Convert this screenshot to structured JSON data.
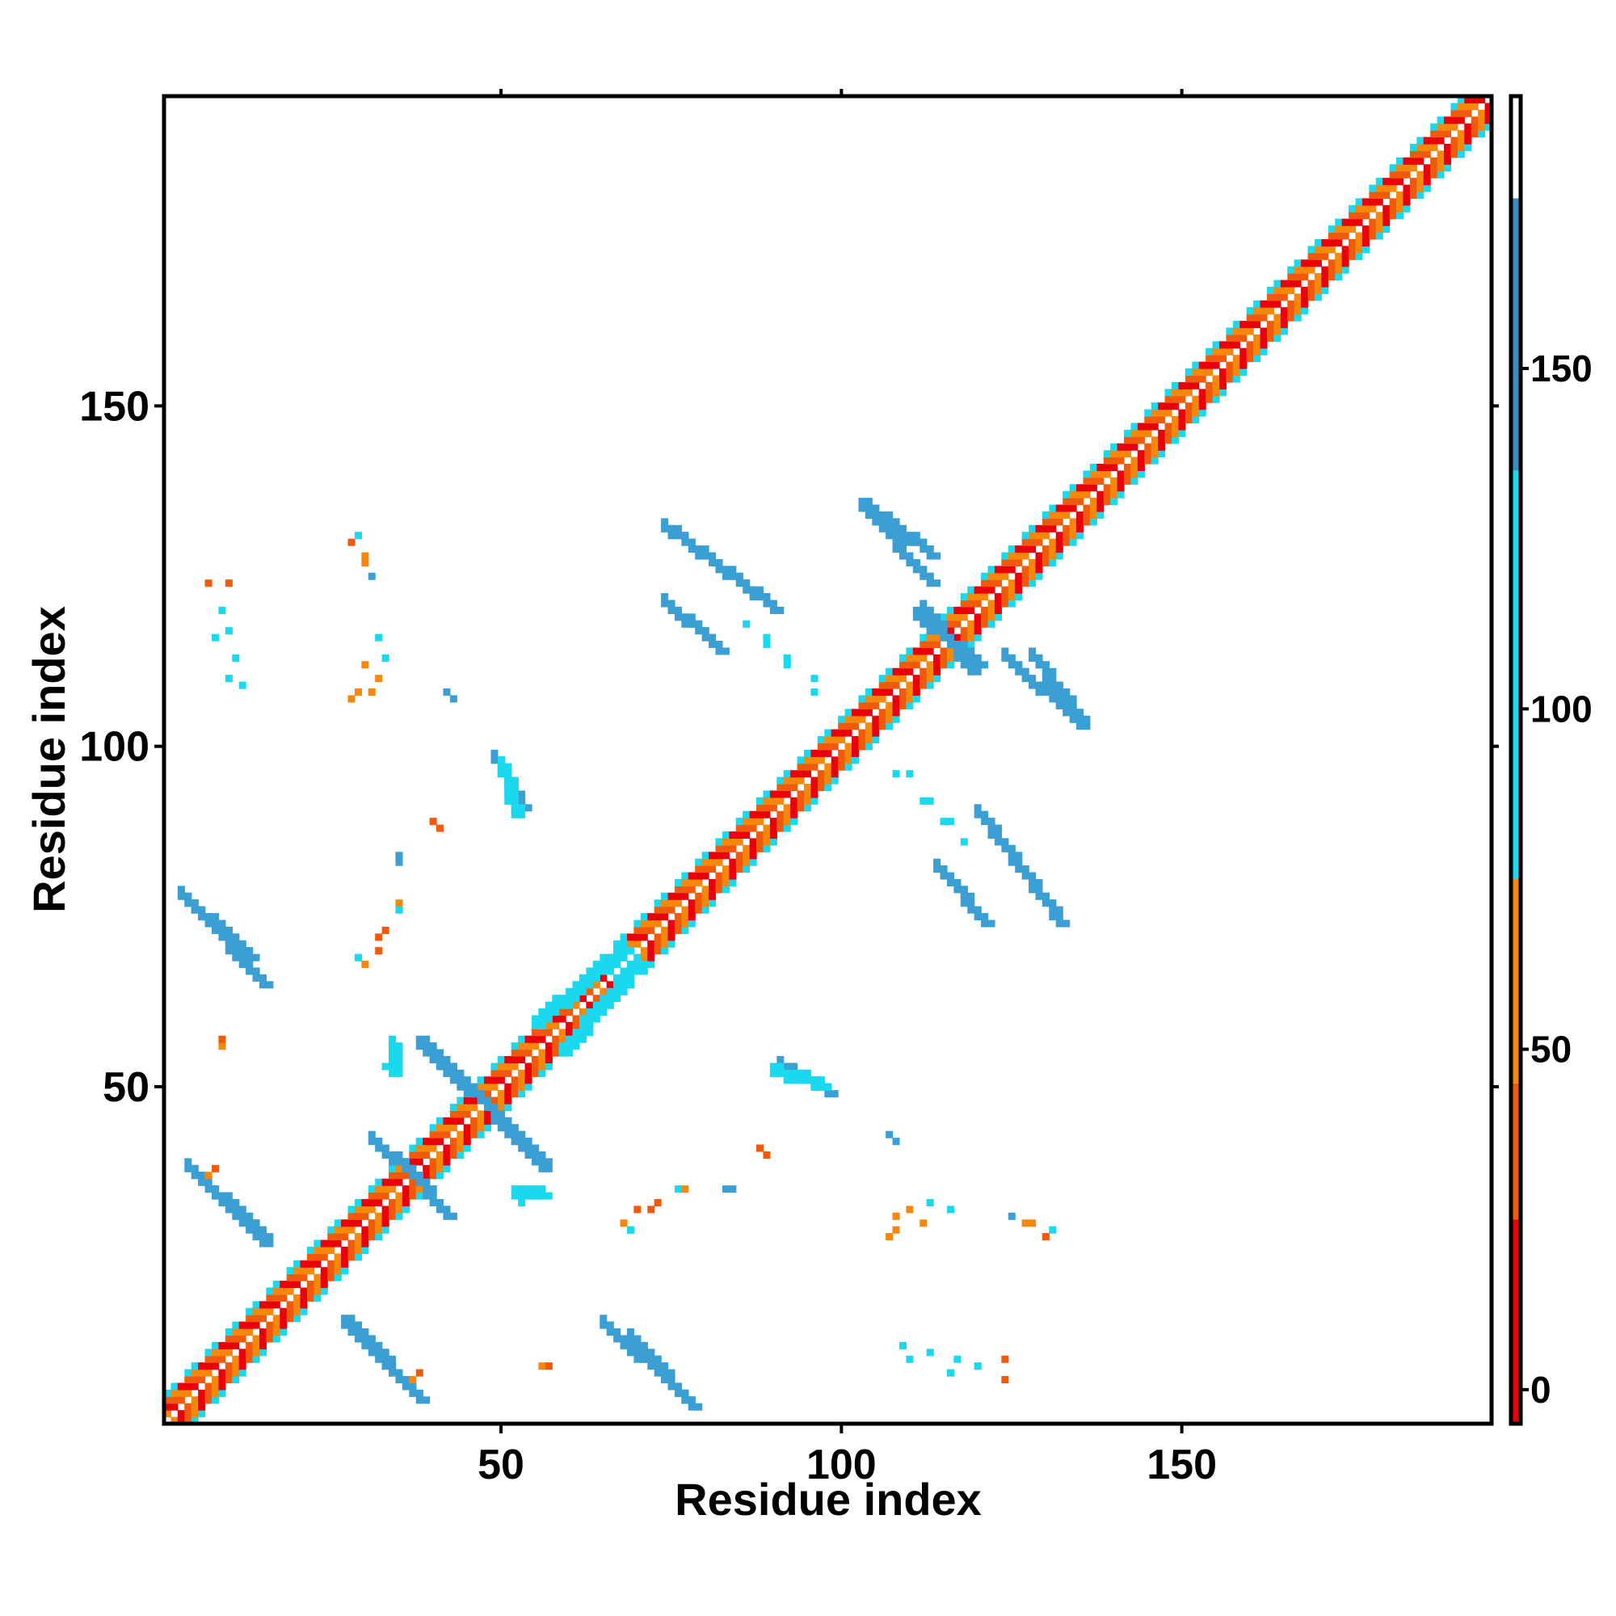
{
  "chart_data": {
    "type": "heatmap",
    "title": "",
    "xlabel": "Residue index",
    "ylabel": "Residue index",
    "xlim": [
      1,
      195
    ],
    "ylim": [
      1,
      195
    ],
    "xticks": [
      50,
      100,
      150
    ],
    "yticks": [
      50,
      100,
      150
    ],
    "grid": false,
    "colorbar": {
      "position": "right",
      "ticks": [
        0,
        50,
        100,
        150
      ],
      "range": [
        -5,
        190
      ],
      "bands": [
        {
          "from": -5,
          "to": 25,
          "color": "#e8000b"
        },
        {
          "from": 25,
          "to": 45,
          "color": "#f15a0a"
        },
        {
          "from": 45,
          "to": 75,
          "color": "#f5880a"
        },
        {
          "from": 75,
          "to": 135,
          "color": "#1ad9ee"
        },
        {
          "from": 135,
          "to": 175,
          "color": "#3b8cc4"
        },
        {
          "from": 175,
          "to": 190,
          "color": "#ffffff"
        }
      ]
    },
    "diagonal": {
      "from": 1,
      "to": 195,
      "near_colors": [
        "#e8000b",
        "#f15a0a",
        "#f5880a"
      ],
      "mid_color": "#1ad9ee"
    },
    "contact_bands": [
      {
        "x": [
          3,
          13
        ],
        "y": [
          78,
          69
        ],
        "color": "#3b9fd4"
      },
      {
        "x": [
          4,
          15
        ],
        "y": [
          38,
          28
        ],
        "color": "#3b9fd4"
      },
      {
        "x": [
          27,
          36
        ],
        "y": [
          15,
          6
        ],
        "color": "#3b9fd4"
      },
      {
        "x": [
          65,
          77
        ],
        "y": [
          15,
          4
        ],
        "color": "#3b9fd4"
      },
      {
        "x": [
          38,
          47
        ],
        "y": [
          56,
          48
        ],
        "color": "#3b9fd4"
      },
      {
        "x": [
          49,
          56
        ],
        "y": [
          45,
          39
        ],
        "color": "#3b9fd4"
      },
      {
        "x": [
          31,
          39
        ],
        "y": [
          42,
          35
        ],
        "color": "#3b9fd4"
      },
      {
        "x": [
          55,
          68
        ],
        "y": [
          59,
          70
        ],
        "color": "#1ad9ee"
      },
      {
        "x": [
          111,
          120
        ],
        "y": [
          119,
          112
        ],
        "color": "#3b9fd4"
      },
      {
        "x": [
          124,
          135
        ],
        "y": [
          113,
          103
        ],
        "color": "#3b9fd4"
      },
      {
        "x": [
          104,
          113
        ],
        "y": [
          135,
          128
        ],
        "color": "#3b9fd4"
      },
      {
        "x": [
          74,
          82
        ],
        "y": [
          121,
          114
        ],
        "color": "#3b9fd4"
      },
      {
        "x": [
          49,
          53
        ],
        "y": [
          98,
          91
        ],
        "color": "#3b9fd4"
      },
      {
        "x": [
          120,
          132
        ],
        "y": [
          90,
          74
        ],
        "color": "#3b9fd4"
      },
      {
        "x": [
          90,
          97
        ],
        "y": [
          52,
          50
        ],
        "color": "#1ad9ee"
      },
      {
        "x": [
          52,
          56
        ],
        "y": [
          34,
          34
        ],
        "color": "#1ad9ee"
      }
    ],
    "contact_patches": [
      {
        "x": 9,
        "y": 56,
        "color": "#f5880a"
      },
      {
        "x": 8,
        "y": 38,
        "color": "#f15a0a"
      },
      {
        "x": 7,
        "y": 124,
        "color": "#f15a0a"
      },
      {
        "x": 8,
        "y": 116,
        "color": "#1ad9ee"
      },
      {
        "x": 10,
        "y": 110,
        "color": "#1ad9ee"
      },
      {
        "x": 28,
        "y": 107,
        "color": "#f5880a"
      },
      {
        "x": 30,
        "y": 112,
        "color": "#f5880a"
      },
      {
        "x": 32,
        "y": 116,
        "color": "#1ad9ee"
      },
      {
        "x": 28,
        "y": 130,
        "color": "#f15a0a"
      },
      {
        "x": 30,
        "y": 127,
        "color": "#f5880a"
      },
      {
        "x": 42,
        "y": 108,
        "color": "#3b9fd4"
      },
      {
        "x": 40,
        "y": 89,
        "color": "#f15a0a"
      },
      {
        "x": 35,
        "y": 84,
        "color": "#3b9fd4"
      },
      {
        "x": 32,
        "y": 72,
        "color": "#f15a0a"
      },
      {
        "x": 29,
        "y": 69,
        "color": "#1ad9ee"
      },
      {
        "x": 35,
        "y": 77,
        "color": "#f5880a"
      },
      {
        "x": 33,
        "y": 53,
        "color": "#1ad9ee"
      },
      {
        "x": 57,
        "y": 9,
        "color": "#f15a0a"
      },
      {
        "x": 37,
        "y": 7,
        "color": "#f5880a"
      },
      {
        "x": 73,
        "y": 33,
        "color": "#f15a0a"
      },
      {
        "x": 70,
        "y": 32,
        "color": "#f15a0a"
      },
      {
        "x": 68,
        "y": 30,
        "color": "#f5880a"
      },
      {
        "x": 76,
        "y": 35,
        "color": "#1ad9ee"
      },
      {
        "x": 69,
        "y": 29,
        "color": "#1ad9ee"
      },
      {
        "x": 83,
        "y": 35,
        "color": "#3b9fd4"
      },
      {
        "x": 88,
        "y": 41,
        "color": "#f15a0a"
      },
      {
        "x": 107,
        "y": 43,
        "color": "#3b9fd4"
      },
      {
        "x": 108,
        "y": 31,
        "color": "#f5880a"
      },
      {
        "x": 110,
        "y": 32,
        "color": "#f5880a"
      },
      {
        "x": 113,
        "y": 33,
        "color": "#1ad9ee"
      },
      {
        "x": 108,
        "y": 29,
        "color": "#f5880a"
      },
      {
        "x": 128,
        "y": 30,
        "color": "#f5880a"
      },
      {
        "x": 131,
        "y": 29,
        "color": "#1ad9ee"
      },
      {
        "x": 125,
        "y": 31,
        "color": "#3b9fd4"
      },
      {
        "x": 109,
        "y": 12,
        "color": "#1ad9ee"
      },
      {
        "x": 113,
        "y": 11,
        "color": "#1ad9ee"
      },
      {
        "x": 117,
        "y": 10,
        "color": "#1ad9ee"
      },
      {
        "x": 120,
        "y": 9,
        "color": "#1ad9ee"
      },
      {
        "x": 124,
        "y": 10,
        "color": "#f15a0a"
      },
      {
        "x": 108,
        "y": 96,
        "color": "#1ad9ee"
      },
      {
        "x": 112,
        "y": 92,
        "color": "#1ad9ee"
      },
      {
        "x": 115,
        "y": 89,
        "color": "#1ad9ee"
      },
      {
        "x": 118,
        "y": 86,
        "color": "#1ad9ee"
      },
      {
        "x": 89,
        "y": 116,
        "color": "#1ad9ee"
      },
      {
        "x": 92,
        "y": 113,
        "color": "#1ad9ee"
      },
      {
        "x": 96,
        "y": 110,
        "color": "#1ad9ee"
      }
    ]
  }
}
